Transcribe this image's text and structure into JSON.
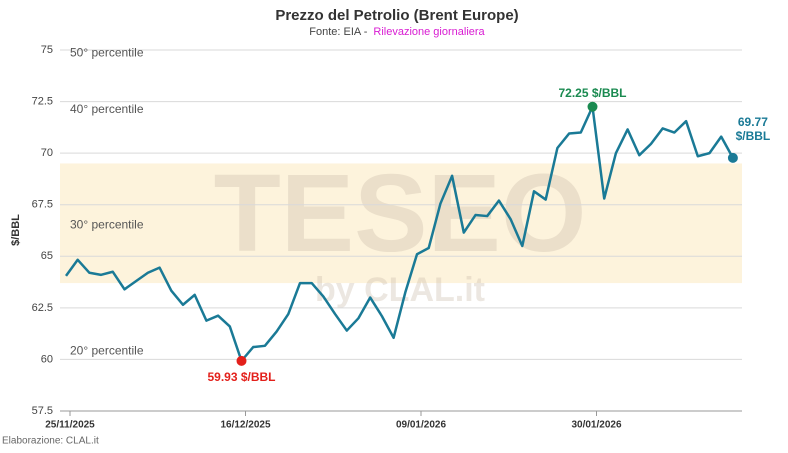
{
  "chart_data": {
    "type": "line",
    "title": "Prezzo del Petrolio (Brent Europe)",
    "subtitle_source": "Fonte: EIA -",
    "subtitle_note": "Rilevazione giornaliera",
    "y_label": "$/BBL",
    "footer": "Elaborazione: CLAL.it",
    "watermark": "TESEO",
    "watermark_sub": "by CLAL.it",
    "categories": [
      "25/11/2025",
      null,
      null,
      null,
      null,
      null,
      null,
      null,
      null,
      null,
      null,
      null,
      null,
      null,
      null,
      "16/12/2025",
      null,
      null,
      null,
      null,
      null,
      null,
      null,
      null,
      null,
      null,
      null,
      null,
      null,
      null,
      "09/01/2026",
      null,
      null,
      null,
      null,
      null,
      null,
      null,
      null,
      null,
      null,
      null,
      null,
      null,
      null,
      "30/01/2026",
      null,
      null,
      null,
      null,
      null,
      null,
      null,
      null,
      null,
      null,
      null,
      null
    ],
    "series": [
      {
        "name": "$/BBL",
        "color": "#1a7a96",
        "values": [
          64.05,
          64.83,
          64.2,
          64.1,
          64.25,
          63.4,
          63.8,
          64.2,
          64.45,
          63.33,
          62.65,
          63.13,
          61.88,
          62.12,
          61.6,
          59.93,
          60.6,
          60.66,
          61.35,
          62.2,
          63.7,
          63.7,
          63.05,
          62.2,
          61.4,
          62.0,
          63.0,
          62.1,
          61.05,
          63.25,
          65.1,
          65.4,
          67.55,
          68.9,
          66.15,
          67.0,
          66.95,
          67.7,
          66.8,
          65.5,
          68.15,
          67.75,
          70.25,
          70.95,
          71.0,
          72.25,
          67.8,
          70.0,
          71.15,
          69.9,
          70.45,
          71.2,
          71.0,
          71.55,
          69.85,
          70.0,
          70.8,
          69.77
        ]
      }
    ],
    "point_labels": [
      {
        "index": 15,
        "label": [
          "59.93 $/BBL"
        ],
        "color": "#e3201b",
        "position": "below"
      },
      {
        "index": 45,
        "label": [
          "72.25 $/BBL"
        ],
        "color": "#1a8a50",
        "position": "above"
      },
      {
        "index": 57,
        "label": [
          "69.77",
          "$/BBL"
        ],
        "color": "#1a7a96",
        "position": "above"
      }
    ],
    "percentiles": [
      {
        "label": "50° percentile",
        "value": 74.85
      },
      {
        "label": "40° percentile",
        "value": 72.1
      },
      {
        "label": "30° percentile",
        "value": 66.5
      },
      {
        "label": "20° percentile",
        "value": 60.4
      }
    ],
    "band": {
      "from": 63.7,
      "to": 69.5,
      "color": "#fdf3dc"
    },
    "ylim": [
      57.5,
      75
    ],
    "yticks": [
      57.5,
      60,
      62.5,
      65,
      67.5,
      70,
      72.5,
      75
    ],
    "grid": true
  }
}
